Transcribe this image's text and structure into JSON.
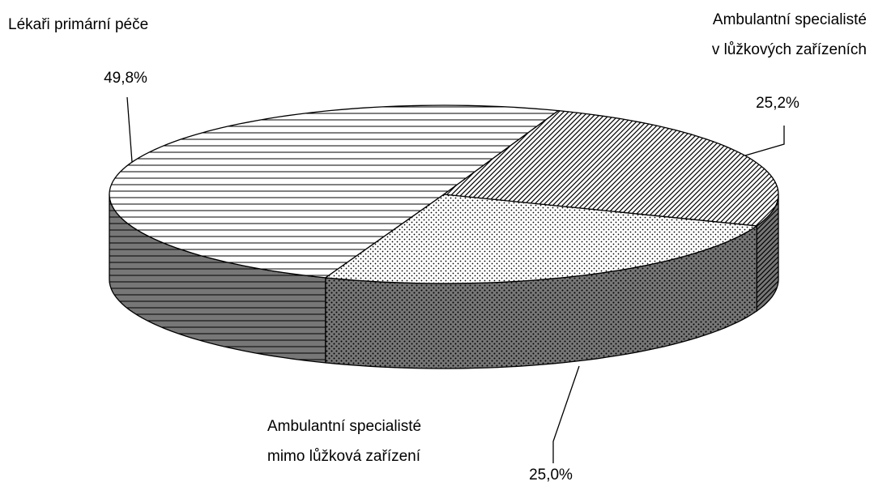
{
  "chart_data": {
    "type": "pie3d",
    "categories": [
      "Lékaři primární péče",
      "Ambulantní specialisté mimo lůžková zařízení",
      "Ambulantní specialisté v lůžkových zařízeních"
    ],
    "values": [
      49.8,
      25.0,
      25.2
    ],
    "value_labels": [
      "49,8%",
      "25,0%",
      "25,2%"
    ]
  }
}
